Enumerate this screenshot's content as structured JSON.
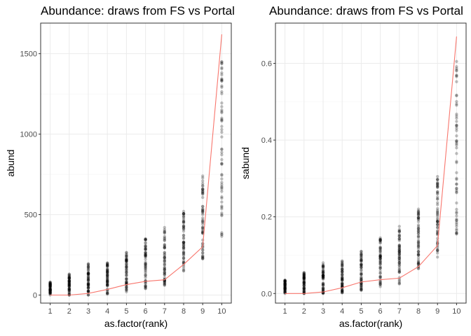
{
  "colors": {
    "background": "#ffffff",
    "panel_border": "#333333",
    "grid_major": "#ebebeb",
    "grid_minor": "#f5f5f5",
    "points": "#000000",
    "line": "#f8766d"
  },
  "chart_data": [
    {
      "type": "scatter",
      "title": "Abundance: draws from FS vs Portal",
      "xlabel": "as.factor(rank)",
      "ylabel": "abund",
      "categories": [
        "1",
        "2",
        "3",
        "4",
        "5",
        "6",
        "7",
        "8",
        "9",
        "10"
      ],
      "ylim": [
        -50,
        1690
      ],
      "yticks": [
        0,
        500,
        1000,
        1500
      ],
      "ytick_labels": [
        "0",
        "500",
        "1000",
        "1500"
      ],
      "grid": true,
      "point_alpha": 0.25,
      "point_ranges": [
        [
          0,
          80
        ],
        [
          0,
          130
        ],
        [
          0,
          195
        ],
        [
          5,
          200
        ],
        [
          20,
          265
        ],
        [
          40,
          350
        ],
        [
          60,
          420
        ],
        [
          150,
          520
        ],
        [
          225,
          740
        ],
        [
          365,
          1450
        ]
      ],
      "series": [
        {
          "type": "line",
          "values": [
            0,
            0,
            10,
            35,
            65,
            85,
            95,
            190,
            300,
            1620
          ]
        }
      ]
    },
    {
      "type": "scatter",
      "title": "Abundance: draws from FS vs Portal",
      "xlabel": "as.factor(rank)",
      "ylabel": "sabund",
      "categories": [
        "1",
        "2",
        "3",
        "4",
        "5",
        "6",
        "7",
        "8",
        "9",
        "10"
      ],
      "ylim": [
        -0.025,
        0.705
      ],
      "yticks": [
        0.0,
        0.2,
        0.4,
        0.6
      ],
      "ytick_labels": [
        "0.0",
        "0.2",
        "0.4",
        "0.6"
      ],
      "grid": true,
      "point_alpha": 0.25,
      "point_ranges": [
        [
          0,
          0.035
        ],
        [
          0,
          0.055
        ],
        [
          0,
          0.08
        ],
        [
          0.002,
          0.085
        ],
        [
          0.008,
          0.11
        ],
        [
          0.018,
          0.145
        ],
        [
          0.025,
          0.175
        ],
        [
          0.065,
          0.22
        ],
        [
          0.095,
          0.305
        ],
        [
          0.155,
          0.605
        ]
      ],
      "series": [
        {
          "type": "line",
          "values": [
            0,
            0,
            0.004,
            0.015,
            0.03,
            0.036,
            0.04,
            0.07,
            0.125,
            0.67
          ]
        }
      ]
    }
  ]
}
